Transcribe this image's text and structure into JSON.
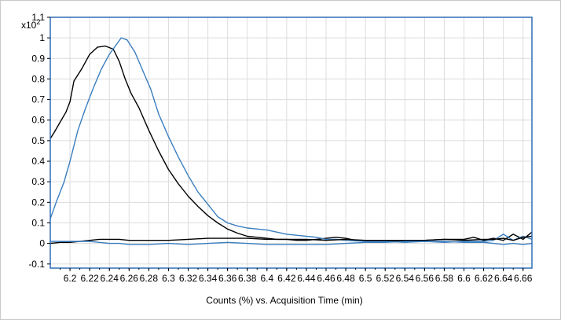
{
  "chart_data": {
    "type": "line",
    "xlabel": "Counts (%) vs. Acquisition Time (min)",
    "ylabel": "",
    "y_multiplier": {
      "base": "x10",
      "exp": "2"
    },
    "xlim": [
      6.18,
      6.669
    ],
    "ylim": [
      -0.12,
      1.1
    ],
    "x_ticks": [
      6.2,
      6.22,
      6.24,
      6.26,
      6.28,
      6.3,
      6.32,
      6.34,
      6.36,
      6.38,
      6.4,
      6.42,
      6.44,
      6.46,
      6.48,
      6.5,
      6.52,
      6.54,
      6.56,
      6.58,
      6.6,
      6.62,
      6.64,
      6.66
    ],
    "x_tick_labels": [
      "6.2",
      "6.22",
      "6.24",
      "6.26",
      "6.28",
      "6.3",
      "6.32",
      "6.34",
      "6.36",
      "6.38",
      "6.4",
      "6.42",
      "6.44",
      "6.46",
      "6.48",
      "6.5",
      "6.52",
      "6.54",
      "6.56",
      "6.58",
      "6.6",
      "6.62",
      "6.64",
      "6.66"
    ],
    "y_ticks": [
      -0.1,
      0,
      0.1,
      0.2,
      0.3,
      0.4,
      0.5,
      0.6,
      0.7,
      0.8,
      0.9,
      1,
      1.1
    ],
    "y_tick_labels": [
      "-0.1",
      "0",
      "0.1",
      "0.2",
      "0.3",
      "0.4",
      "0.5",
      "0.6",
      "0.7",
      "0.8",
      "0.9",
      "1",
      "1.1"
    ],
    "grid": true,
    "colors": {
      "frame": "#2f6db5",
      "grid": "#dcdcdc",
      "series_black": "#000000",
      "series_blue": "#3a7ebf"
    },
    "series": [
      {
        "color": "#000000",
        "x": [
          6.18,
          6.184,
          6.19,
          6.196,
          6.2,
          6.204,
          6.212,
          6.22,
          6.228,
          6.236,
          6.244,
          6.25,
          6.256,
          6.262,
          6.27,
          6.28,
          6.29,
          6.3,
          6.31,
          6.32,
          6.33,
          6.34,
          6.35,
          6.36,
          6.37,
          6.38,
          6.39,
          6.4,
          6.41,
          6.42,
          6.43,
          6.44,
          6.45,
          6.46,
          6.47,
          6.48,
          6.49,
          6.5,
          6.52,
          6.54,
          6.56,
          6.58,
          6.6,
          6.61,
          6.62,
          6.63,
          6.64,
          6.65,
          6.66,
          6.669
        ],
        "y": [
          0.51,
          0.54,
          0.59,
          0.64,
          0.69,
          0.79,
          0.85,
          0.92,
          0.955,
          0.96,
          0.945,
          0.885,
          0.8,
          0.73,
          0.66,
          0.55,
          0.45,
          0.36,
          0.29,
          0.23,
          0.18,
          0.135,
          0.1,
          0.07,
          0.05,
          0.035,
          0.03,
          0.025,
          0.02,
          0.02,
          0.015,
          0.015,
          0.02,
          0.025,
          0.03,
          0.025,
          0.015,
          0.015,
          0.01,
          0.015,
          0.015,
          0.02,
          0.02,
          0.03,
          0.015,
          0.025,
          0.015,
          0.045,
          0.02,
          0.055
        ]
      },
      {
        "color": "#3a7ebf",
        "x": [
          6.18,
          6.186,
          6.194,
          6.2,
          6.208,
          6.216,
          6.224,
          6.232,
          6.24,
          6.246,
          6.252,
          6.258,
          6.266,
          6.274,
          6.282,
          6.29,
          6.3,
          6.31,
          6.32,
          6.33,
          6.34,
          6.35,
          6.36,
          6.37,
          6.38,
          6.39,
          6.4,
          6.41,
          6.42,
          6.43,
          6.44,
          6.45,
          6.46,
          6.47,
          6.48,
          6.5,
          6.52,
          6.54,
          6.56,
          6.58,
          6.6,
          6.62,
          6.63,
          6.64,
          6.65,
          6.66,
          6.669
        ],
        "y": [
          0.12,
          0.2,
          0.3,
          0.4,
          0.55,
          0.66,
          0.76,
          0.85,
          0.92,
          0.96,
          1.0,
          0.99,
          0.93,
          0.84,
          0.75,
          0.63,
          0.52,
          0.42,
          0.33,
          0.25,
          0.19,
          0.13,
          0.1,
          0.085,
          0.075,
          0.07,
          0.065,
          0.055,
          0.045,
          0.04,
          0.035,
          0.03,
          0.02,
          0.02,
          0.015,
          0.01,
          0.01,
          0.005,
          0.01,
          0.005,
          0.01,
          0.01,
          0.015,
          0.045,
          0.015,
          0.035,
          0.02
        ]
      },
      {
        "color": "#000000",
        "x": [
          6.18,
          6.19,
          6.2,
          6.21,
          6.22,
          6.23,
          6.24,
          6.25,
          6.26,
          6.28,
          6.3,
          6.32,
          6.34,
          6.36,
          6.38,
          6.4,
          6.42,
          6.44,
          6.46,
          6.48,
          6.5,
          6.52,
          6.54,
          6.56,
          6.58,
          6.6,
          6.62,
          6.63,
          6.64,
          6.65,
          6.66,
          6.669
        ],
        "y": [
          0.0,
          0.005,
          0.005,
          0.01,
          0.015,
          0.02,
          0.02,
          0.02,
          0.015,
          0.015,
          0.015,
          0.02,
          0.025,
          0.025,
          0.025,
          0.02,
          0.02,
          0.02,
          0.015,
          0.02,
          0.015,
          0.015,
          0.015,
          0.015,
          0.02,
          0.015,
          0.02,
          0.02,
          0.025,
          0.015,
          0.03,
          0.035
        ]
      },
      {
        "color": "#3a7ebf",
        "x": [
          6.18,
          6.19,
          6.2,
          6.21,
          6.22,
          6.23,
          6.24,
          6.25,
          6.26,
          6.28,
          6.3,
          6.32,
          6.34,
          6.36,
          6.38,
          6.4,
          6.42,
          6.44,
          6.46,
          6.48,
          6.5,
          6.52,
          6.54,
          6.56,
          6.58,
          6.6,
          6.62,
          6.63,
          6.64,
          6.65,
          6.66,
          6.669
        ],
        "y": [
          0.01,
          0.01,
          0.01,
          0.01,
          0.01,
          0.005,
          0.0,
          0.0,
          -0.005,
          -0.005,
          0.0,
          -0.005,
          0.0,
          0.005,
          0.0,
          -0.005,
          -0.005,
          -0.005,
          -0.005,
          0.0,
          0.005,
          0.005,
          0.01,
          0.01,
          0.01,
          0.005,
          0.005,
          0.0,
          -0.005,
          0.0,
          -0.005,
          0.0
        ]
      }
    ]
  }
}
